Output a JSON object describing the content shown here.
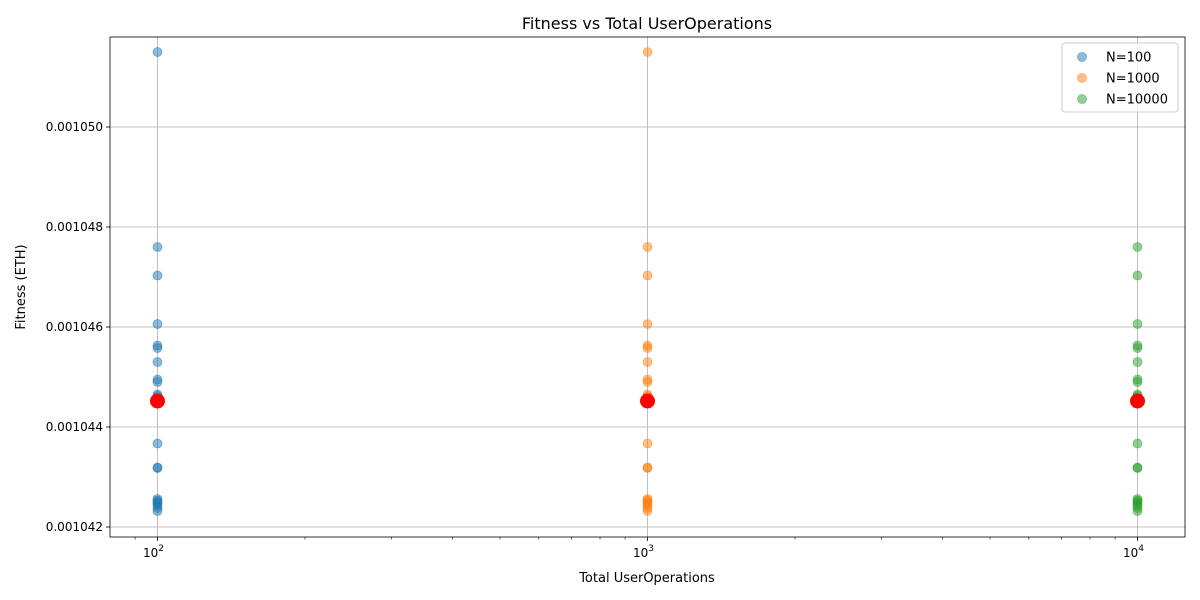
{
  "chart_data": {
    "type": "scatter",
    "title": "Fitness vs Total UserOperations",
    "xlabel": "Total UserOperations",
    "ylabel": "Fitness (ETH)",
    "x_scale": "log",
    "xlim": [
      80,
      12500
    ],
    "ylim": [
      0.0010418,
      0.0010518
    ],
    "x_ticks": [
      {
        "value": 100,
        "base": "10",
        "exp": "2"
      },
      {
        "value": 1000,
        "base": "10",
        "exp": "3"
      },
      {
        "value": 10000,
        "base": "10",
        "exp": "4"
      }
    ],
    "y_ticks": [
      {
        "value": 0.001042,
        "label": "0.001042"
      },
      {
        "value": 0.001044,
        "label": "0.001044"
      },
      {
        "value": 0.001046,
        "label": "0.001046"
      },
      {
        "value": 0.001048,
        "label": "0.001048"
      },
      {
        "value": 0.00105,
        "label": "0.001050"
      }
    ],
    "grid": true,
    "legend_position": "top-right",
    "series": [
      {
        "name": "N=100",
        "color": "#1f77b4",
        "x": 100,
        "y": [
          0.0010515,
          0.0010476,
          0.00104703,
          0.00104606,
          0.00104563,
          0.00104558,
          0.0010453,
          0.00104495,
          0.0010449,
          0.00104465,
          0.00104462,
          0.00104367,
          0.00104319,
          0.00104318,
          0.00104256,
          0.00104253,
          0.0010425,
          0.00104247,
          0.00104243,
          0.00104238,
          0.00104232
        ]
      },
      {
        "name": "N=1000",
        "color": "#ff7f0e",
        "x": 1000,
        "y": [
          0.0010515,
          0.0010476,
          0.00104703,
          0.00104606,
          0.00104563,
          0.00104558,
          0.0010453,
          0.00104495,
          0.0010449,
          0.00104465,
          0.00104462,
          0.00104367,
          0.00104319,
          0.00104318,
          0.00104256,
          0.00104253,
          0.0010425,
          0.00104247,
          0.00104243,
          0.00104238,
          0.00104232
        ]
      },
      {
        "name": "N=10000",
        "color": "#2ca02c",
        "x": 10000,
        "y": [
          0.0010476,
          0.00104703,
          0.00104606,
          0.00104563,
          0.00104558,
          0.0010453,
          0.00104495,
          0.0010449,
          0.00104465,
          0.00104462,
          0.00104367,
          0.00104319,
          0.00104318,
          0.00104256,
          0.00104253,
          0.0010425,
          0.00104247,
          0.00104243,
          0.00104238,
          0.00104232
        ]
      }
    ],
    "highlight": {
      "color": "#ff0000",
      "points": [
        {
          "x": 100,
          "y": 0.00104452
        },
        {
          "x": 1000,
          "y": 0.00104452
        },
        {
          "x": 10000,
          "y": 0.00104452
        }
      ]
    }
  }
}
